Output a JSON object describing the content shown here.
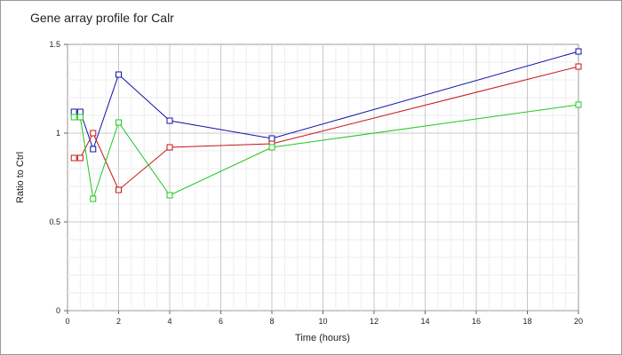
{
  "chart_data": {
    "type": "line",
    "title": "Gene array profile for Calr",
    "xlabel": "Time (hours)",
    "ylabel": "Ratio to Ctrl",
    "xlim": [
      0,
      20
    ],
    "ylim": [
      0,
      1.5
    ],
    "x_ticks": [
      "0",
      "2",
      "4",
      "6",
      "8",
      "10",
      "12",
      "14",
      "16",
      "18",
      "20"
    ],
    "y_ticks": [
      "0",
      "0.5",
      "1",
      "1.5"
    ],
    "grid": true,
    "legend": "none",
    "series": [
      {
        "color": "#1010a8",
        "x": [
          0.25,
          0.5,
          1,
          2,
          4,
          8,
          20
        ],
        "y": [
          1.12,
          1.12,
          0.91,
          1.33,
          1.07,
          0.97,
          1.46
        ]
      },
      {
        "color": "#c81414",
        "x": [
          0.25,
          0.5,
          1,
          2,
          4,
          8,
          20
        ],
        "y": [
          0.86,
          0.86,
          1.0,
          0.68,
          0.92,
          0.94,
          1.375
        ]
      },
      {
        "color": "#1ec81e",
        "x": [
          0.25,
          0.5,
          1,
          2,
          4,
          8,
          20
        ],
        "y": [
          1.09,
          1.09,
          0.63,
          1.06,
          0.65,
          0.92,
          1.16
        ]
      }
    ]
  }
}
